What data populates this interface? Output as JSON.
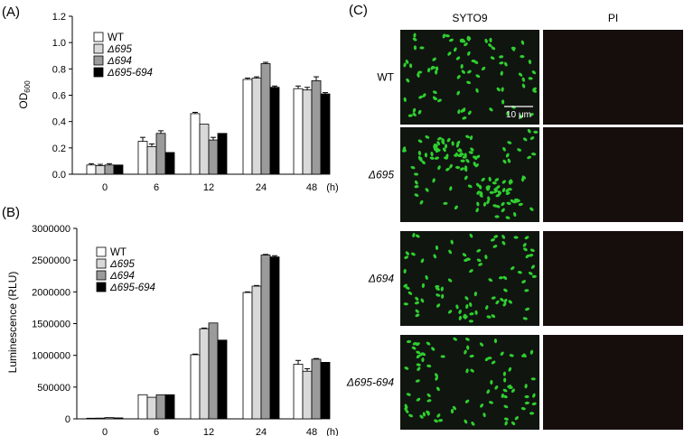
{
  "panels": {
    "a_label": "(A)",
    "b_label": "(B)",
    "c_label": "(C)"
  },
  "colors": {
    "WT": "#ffffff",
    "d695": "#d9d9d9",
    "d694": "#9b9b9b",
    "d695_694": "#000000",
    "microscopy_bg": "#101510",
    "pi_bg": "#160d0d",
    "cell_green": "#2fcf2f"
  },
  "chart_data": [
    {
      "type": "bar",
      "id": "A",
      "ylabel": "OD",
      "ylabel_sub": "600",
      "xlabel": "(h)",
      "categories": [
        "0",
        "6",
        "12",
        "24",
        "48"
      ],
      "ylim": [
        0,
        1.2
      ],
      "yticks": [
        "0.0",
        "0.2",
        "0.4",
        "0.6",
        "0.8",
        "1.0",
        "1.2"
      ],
      "ytick_values": [
        0,
        0.2,
        0.4,
        0.6,
        0.8,
        1.0,
        1.2
      ],
      "series": [
        {
          "name": "WT",
          "italic": false,
          "values": [
            0.07,
            0.25,
            0.46,
            0.72,
            0.65
          ],
          "errors": [
            0.01,
            0.03,
            0.01,
            0.01,
            0.02
          ]
        },
        {
          "name": "Δ695",
          "italic": true,
          "values": [
            0.065,
            0.21,
            0.38,
            0.73,
            0.64
          ],
          "errors": [
            0.01,
            0.02,
            0.0,
            0.01,
            0.02
          ]
        },
        {
          "name": "Δ694",
          "italic": true,
          "values": [
            0.07,
            0.31,
            0.26,
            0.84,
            0.71
          ],
          "errors": [
            0.01,
            0.02,
            0.02,
            0.01,
            0.03
          ]
        },
        {
          "name": "Δ695-694",
          "italic": true,
          "values": [
            0.07,
            0.165,
            0.31,
            0.66,
            0.61
          ],
          "errors": [
            0.0,
            0.0,
            0.0,
            0.01,
            0.01
          ]
        }
      ]
    },
    {
      "type": "bar",
      "id": "B",
      "ylabel": "Luminescence (RLU)",
      "xlabel": "(h)",
      "categories": [
        "0",
        "6",
        "12",
        "24",
        "48"
      ],
      "ylim": [
        0,
        3000000
      ],
      "yticks": [
        "0",
        "500000",
        "1000000",
        "1500000",
        "2000000",
        "2500000",
        "3000000"
      ],
      "ytick_values": [
        0,
        500000,
        1000000,
        1500000,
        2000000,
        2500000,
        3000000
      ],
      "series": [
        {
          "name": "WT",
          "italic": false,
          "values": [
            10000,
            380000,
            1010000,
            1990000,
            860000
          ],
          "errors": [
            0,
            0,
            10000,
            10000,
            60000
          ]
        },
        {
          "name": "Δ695",
          "italic": true,
          "values": [
            12000,
            340000,
            1420000,
            2090000,
            750000
          ],
          "errors": [
            0,
            0,
            10000,
            10000,
            40000
          ]
        },
        {
          "name": "Δ694",
          "italic": true,
          "values": [
            20000,
            380000,
            1510000,
            2580000,
            940000
          ],
          "errors": [
            0,
            0,
            0,
            10000,
            10000
          ]
        },
        {
          "name": "Δ695-694",
          "italic": true,
          "values": [
            15000,
            380000,
            1240000,
            2550000,
            890000
          ],
          "errors": [
            0,
            0,
            0,
            20000,
            0
          ]
        }
      ]
    }
  ],
  "micro": {
    "col_headers": [
      "SYTO9",
      "PI"
    ],
    "rows": [
      {
        "label": "WT",
        "italic": false
      },
      {
        "label": "Δ695",
        "italic": true
      },
      {
        "label": "Δ694",
        "italic": true
      },
      {
        "label": "Δ695-694",
        "italic": true
      }
    ],
    "scale_bar": "10 μm"
  }
}
